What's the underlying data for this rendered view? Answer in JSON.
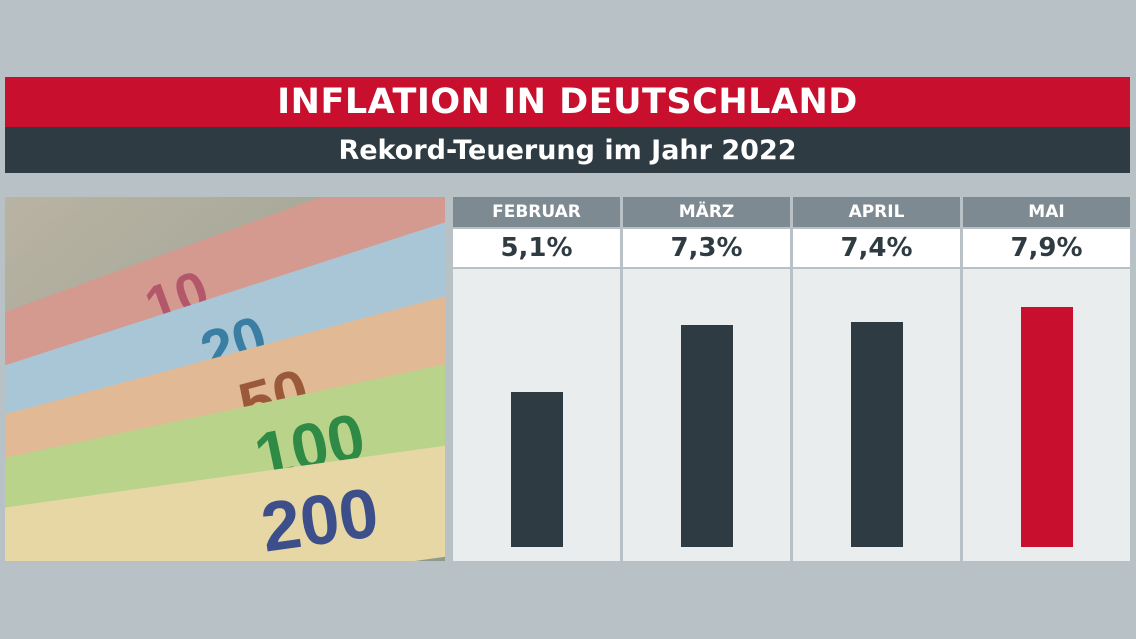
{
  "header": {
    "title": "INFLATION IN DEUTSCHLAND",
    "subtitle": "Rekord-Teuerung im Jahr 2022"
  },
  "photo": {
    "banknote_labels": [
      "10",
      "20",
      "50",
      "100",
      "200"
    ]
  },
  "colors": {
    "accent_red": "#c8102e",
    "dark": "#2e3b42",
    "header_grey": "#7d8a91"
  },
  "chart_data": {
    "type": "bar",
    "title": "",
    "categories": [
      "FEBRUAR",
      "MÄRZ",
      "APRIL",
      "MAI"
    ],
    "values": [
      5.1,
      7.3,
      7.4,
      7.9
    ],
    "value_labels": [
      "5,1%",
      "7,3%",
      "7,4%",
      "7,9%"
    ],
    "unit": "%",
    "ylim": [
      0,
      10
    ],
    "highlight_index": 3,
    "grid": false
  }
}
